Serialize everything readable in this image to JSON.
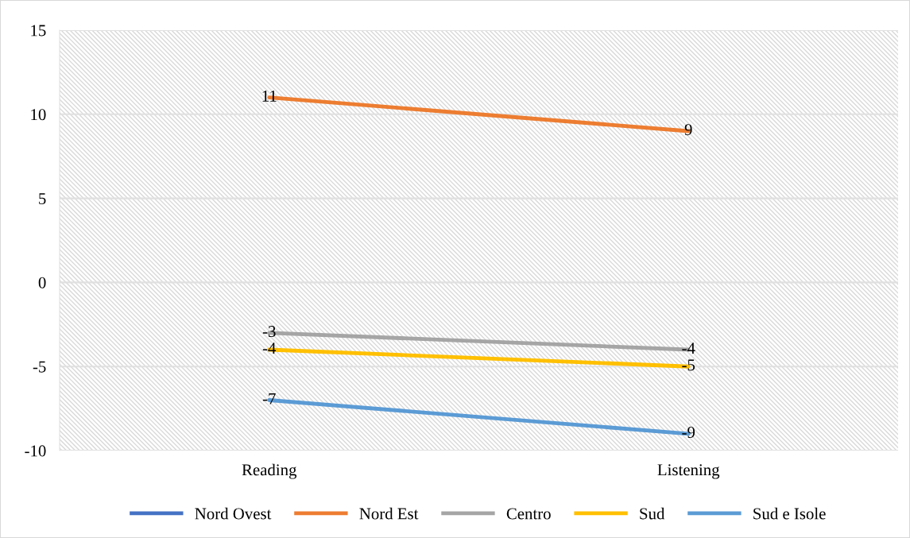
{
  "chart_data": {
    "type": "line",
    "categories": [
      "Reading",
      "Listening"
    ],
    "series": [
      {
        "name": "Nord Ovest",
        "color": "#4472c4",
        "values": [
          null,
          null
        ]
      },
      {
        "name": "Nord Est",
        "color": "#ed7d31",
        "values": [
          11,
          9
        ]
      },
      {
        "name": "Centro",
        "color": "#a5a5a5",
        "values": [
          -3,
          -4
        ]
      },
      {
        "name": "Sud",
        "color": "#ffc000",
        "values": [
          -4,
          -5
        ]
      },
      {
        "name": "Sud e Isole",
        "color": "#5b9bd5",
        "values": [
          -7,
          -9
        ]
      }
    ],
    "ylim": [
      -10,
      15
    ],
    "yticks": [
      -10,
      -5,
      0,
      5,
      10,
      15
    ],
    "grid": "y",
    "legend": "bottom",
    "data_labels": true,
    "marker": "none",
    "line_style": "solid"
  }
}
